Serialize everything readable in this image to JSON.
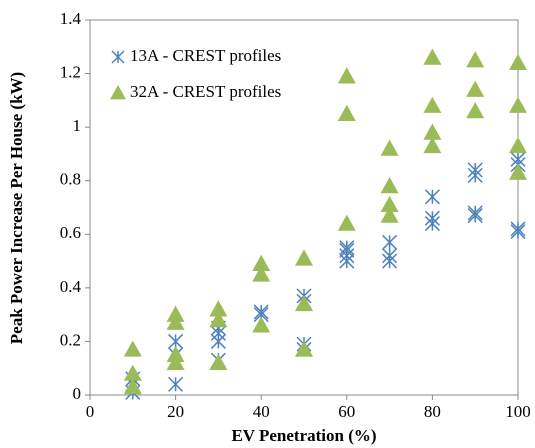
{
  "chart_data": {
    "type": "scatter",
    "xlabel": "EV Penetration (%)",
    "ylabel": "Peak Power Increase Per House (kW)",
    "xlim": [
      0,
      100
    ],
    "xticks": [
      0,
      20,
      40,
      60,
      80,
      100
    ],
    "ylim": [
      0,
      1.4
    ],
    "yticks": [
      0,
      0.2,
      0.4,
      0.6,
      0.8,
      1,
      1.2,
      1.4
    ],
    "legend": "top-left",
    "series": [
      {
        "name": "13A - CREST profiles",
        "color": "#4f81bd",
        "marker": "asterisk",
        "x": [
          10,
          10,
          10,
          20,
          20,
          20,
          30,
          30,
          30,
          30,
          40,
          40,
          50,
          50,
          50,
          50,
          60,
          60,
          60,
          60,
          70,
          70,
          70,
          80,
          80,
          80,
          90,
          90,
          90,
          90,
          100,
          100,
          100,
          100
        ],
        "values": [
          0.01,
          0.04,
          0.06,
          0.04,
          0.15,
          0.2,
          0.13,
          0.2,
          0.23,
          0.25,
          0.3,
          0.31,
          0.17,
          0.19,
          0.35,
          0.37,
          0.5,
          0.52,
          0.54,
          0.55,
          0.5,
          0.52,
          0.57,
          0.64,
          0.66,
          0.74,
          0.67,
          0.68,
          0.82,
          0.84,
          0.61,
          0.62,
          0.86,
          0.88
        ]
      },
      {
        "name": "32A - CREST profiles",
        "color": "#9bbb59",
        "marker": "triangle",
        "x": [
          10,
          10,
          10,
          20,
          20,
          20,
          20,
          30,
          30,
          30,
          40,
          40,
          40,
          50,
          50,
          50,
          60,
          60,
          60,
          70,
          70,
          70,
          70,
          80,
          80,
          80,
          80,
          90,
          90,
          90,
          100,
          100,
          100,
          100
        ],
        "values": [
          0.03,
          0.08,
          0.17,
          0.12,
          0.15,
          0.27,
          0.3,
          0.12,
          0.28,
          0.32,
          0.26,
          0.45,
          0.49,
          0.17,
          0.34,
          0.51,
          0.64,
          1.05,
          1.19,
          0.67,
          0.71,
          0.78,
          0.92,
          0.93,
          0.98,
          1.08,
          1.26,
          1.06,
          1.14,
          1.25,
          0.83,
          0.93,
          1.08,
          1.24
        ]
      }
    ]
  }
}
